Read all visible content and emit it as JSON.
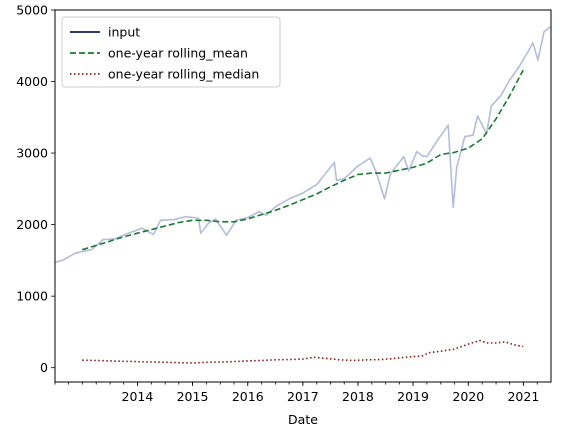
{
  "chart_data": {
    "type": "line",
    "xlabel": "Date",
    "ylabel": "",
    "x_axis": "date",
    "xlim": [
      "2013-01-01",
      "2021-12-31"
    ],
    "ylim": [
      -200,
      5000
    ],
    "x_ticks": [
      "2014",
      "2015",
      "2016",
      "2017",
      "2018",
      "2019",
      "2020",
      "2021"
    ],
    "y_ticks": [
      0,
      1000,
      2000,
      3000,
      4000,
      5000
    ],
    "legend": {
      "position": "top-left"
    },
    "grid": false,
    "series": [
      {
        "name": "input",
        "legend_color": "#0d1b5e",
        "draw_color": "#b3bcdb",
        "style": "solid",
        "x": [
          "2013-01-01",
          "2013-03-01",
          "2013-05-15",
          "2013-06-20",
          "2013-09-01",
          "2013-11-15",
          "2014-02-01",
          "2014-05-01",
          "2014-08-01",
          "2014-10-15",
          "2014-12-01",
          "2015-03-01",
          "2015-05-20",
          "2015-08-10",
          "2015-08-25",
          "2015-10-15",
          "2015-12-01",
          "2016-02-11",
          "2016-04-15",
          "2016-07-01",
          "2016-09-15",
          "2016-11-01",
          "2017-01-01",
          "2017-04-01",
          "2017-07-01",
          "2017-10-01",
          "2018-01-26",
          "2018-02-09",
          "2018-04-01",
          "2018-07-01",
          "2018-09-20",
          "2018-11-01",
          "2018-12-24",
          "2019-02-01",
          "2019-04-30",
          "2019-06-03",
          "2019-07-26",
          "2019-09-01",
          "2019-10-01",
          "2019-12-01",
          "2020-02-19",
          "2020-03-23",
          "2020-04-15",
          "2020-06-08",
          "2020-08-01",
          "2020-09-01",
          "2020-10-30",
          "2020-12-01",
          "2021-02-01",
          "2021-04-01",
          "2021-06-01",
          "2021-08-01",
          "2021-09-02",
          "2021-10-05",
          "2021-11-15",
          "2021-12-31"
        ],
        "y": [
          1470,
          1510,
          1600,
          1620,
          1650,
          1790,
          1800,
          1880,
          1950,
          1860,
          2060,
          2070,
          2110,
          2090,
          1880,
          2020,
          2080,
          1850,
          2060,
          2100,
          2180,
          2130,
          2250,
          2360,
          2440,
          2560,
          2870,
          2620,
          2640,
          2820,
          2930,
          2720,
          2360,
          2710,
          2950,
          2750,
          3020,
          2960,
          2950,
          3150,
          3390,
          2240,
          2800,
          3230,
          3250,
          3520,
          3270,
          3660,
          3800,
          4020,
          4200,
          4420,
          4540,
          4300,
          4700,
          4770
        ]
      },
      {
        "name": "one-year rolling_mean",
        "color": "#1a7a2e",
        "style": "dashed",
        "x": [
          "2013-07-01",
          "2013-10-01",
          "2014-01-01",
          "2014-04-01",
          "2014-07-01",
          "2014-10-01",
          "2015-01-01",
          "2015-04-01",
          "2015-07-01",
          "2015-10-01",
          "2016-01-01",
          "2016-04-01",
          "2016-07-01",
          "2016-10-01",
          "2017-01-01",
          "2017-04-01",
          "2017-07-01",
          "2017-10-01",
          "2018-01-01",
          "2018-04-01",
          "2018-07-01",
          "2018-10-01",
          "2019-01-01",
          "2019-04-01",
          "2019-07-01",
          "2019-10-01",
          "2020-01-01",
          "2020-04-01",
          "2020-07-01",
          "2020-10-01",
          "2021-01-01",
          "2021-04-01",
          "2021-06-30"
        ],
        "y": [
          1650,
          1710,
          1770,
          1830,
          1880,
          1930,
          1980,
          2030,
          2060,
          2060,
          2040,
          2040,
          2080,
          2140,
          2200,
          2270,
          2350,
          2430,
          2530,
          2620,
          2700,
          2720,
          2720,
          2760,
          2800,
          2860,
          2980,
          3010,
          3070,
          3200,
          3480,
          3800,
          4160
        ]
      },
      {
        "name": "one-year rolling_median",
        "color": "#8b1a0a",
        "style": "dotted",
        "x": [
          "2013-07-01",
          "2013-10-01",
          "2014-01-01",
          "2014-04-01",
          "2014-07-01",
          "2014-10-01",
          "2015-01-01",
          "2015-04-01",
          "2015-07-01",
          "2015-10-01",
          "2016-01-01",
          "2016-04-01",
          "2016-07-01",
          "2016-10-01",
          "2017-01-01",
          "2017-04-01",
          "2017-07-01",
          "2017-09-15",
          "2017-12-01",
          "2018-03-01",
          "2018-06-01",
          "2018-09-01",
          "2018-12-01",
          "2019-03-01",
          "2019-06-01",
          "2019-09-01",
          "2019-10-15",
          "2020-01-01",
          "2020-04-01",
          "2020-07-01",
          "2020-09-15",
          "2020-11-01",
          "2021-01-01",
          "2021-03-01",
          "2021-05-01",
          "2021-06-30"
        ],
        "y": [
          105,
          100,
          95,
          90,
          85,
          80,
          75,
          70,
          65,
          75,
          80,
          85,
          95,
          100,
          110,
          115,
          120,
          145,
          130,
          110,
          100,
          110,
          115,
          130,
          150,
          165,
          210,
          230,
          260,
          330,
          380,
          345,
          345,
          360,
          320,
          295
        ]
      }
    ]
  }
}
